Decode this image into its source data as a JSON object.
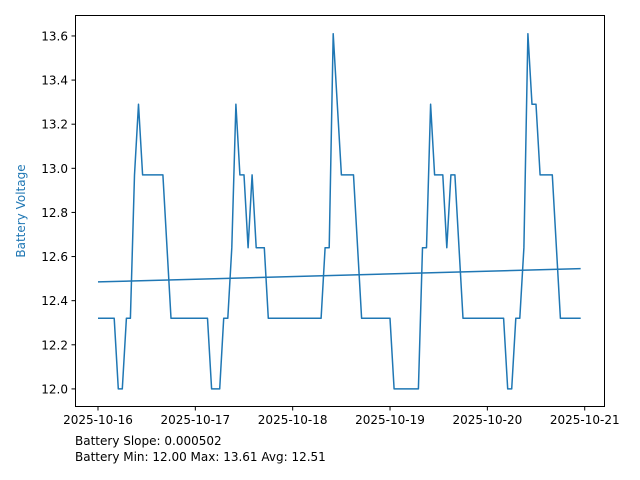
{
  "chart_data": {
    "type": "line",
    "title": "",
    "xlabel": "",
    "ylabel": "Battery Voltage",
    "ylabel_color": "#1f77b4",
    "line_color": "#1f77b4",
    "grid": false,
    "legend": "none",
    "xlim": [
      "2025-10-15T18:20",
      "2025-10-21T05:00"
    ],
    "ylim": [
      11.918,
      13.695
    ],
    "x_ticks": [
      "2025-10-16",
      "2025-10-17",
      "2025-10-18",
      "2025-10-19",
      "2025-10-20",
      "2025-10-21"
    ],
    "y_ticks": [
      "12.0",
      "12.2",
      "12.4",
      "12.6",
      "12.8",
      "13.0",
      "13.2",
      "13.4",
      "13.6"
    ],
    "series": [
      {
        "x": [
          "2025-10-16T00:00",
          "2025-10-16T04:00",
          "2025-10-16T05:00",
          "2025-10-16T06:00",
          "2025-10-16T07:00",
          "2025-10-16T08:00",
          "2025-10-16T09:00",
          "2025-10-16T10:00",
          "2025-10-16T11:00",
          "2025-10-16T16:00",
          "2025-10-16T18:00",
          "2025-10-17T03:00",
          "2025-10-17T04:00",
          "2025-10-17T06:00",
          "2025-10-17T07:00",
          "2025-10-17T08:00",
          "2025-10-17T09:00",
          "2025-10-17T10:00",
          "2025-10-17T11:00",
          "2025-10-17T12:00",
          "2025-10-17T13:00",
          "2025-10-17T14:00",
          "2025-10-17T15:00",
          "2025-10-17T17:00",
          "2025-10-17T18:00",
          "2025-10-18T07:00",
          "2025-10-18T08:00",
          "2025-10-18T09:00",
          "2025-10-18T10:00",
          "2025-10-18T12:00",
          "2025-10-18T15:00",
          "2025-10-18T17:00",
          "2025-10-19T00:00",
          "2025-10-19T01:00",
          "2025-10-19T07:00",
          "2025-10-19T08:00",
          "2025-10-19T09:00",
          "2025-10-19T10:00",
          "2025-10-19T11:00",
          "2025-10-19T13:00",
          "2025-10-19T14:00",
          "2025-10-19T15:00",
          "2025-10-19T16:00",
          "2025-10-19T18:00",
          "2025-10-20T04:00",
          "2025-10-20T05:00",
          "2025-10-20T06:00",
          "2025-10-20T07:00",
          "2025-10-20T08:00",
          "2025-10-20T09:00",
          "2025-10-20T10:00",
          "2025-10-20T11:00",
          "2025-10-20T12:00",
          "2025-10-20T13:00",
          "2025-10-20T16:00",
          "2025-10-20T18:00",
          "2025-10-20T23:00"
        ],
        "y": [
          12.32,
          12.32,
          12.0,
          12.0,
          12.32,
          12.32,
          12.97,
          13.29,
          12.97,
          12.97,
          12.32,
          12.32,
          12.0,
          12.0,
          12.32,
          12.32,
          12.64,
          13.29,
          12.97,
          12.97,
          12.64,
          12.97,
          12.64,
          12.64,
          12.32,
          12.32,
          12.64,
          12.64,
          13.61,
          12.97,
          12.97,
          12.32,
          12.32,
          12.0,
          12.0,
          12.64,
          12.64,
          13.29,
          12.97,
          12.97,
          12.64,
          12.97,
          12.97,
          12.32,
          12.32,
          12.0,
          12.0,
          12.32,
          12.32,
          12.64,
          13.61,
          13.29,
          13.29,
          12.97,
          12.97,
          12.32,
          12.32
        ]
      }
    ],
    "trendline": {
      "x": [
        "2025-10-16T00:00",
        "2025-10-20T23:00"
      ],
      "y": [
        12.485,
        12.545
      ]
    }
  },
  "annotations": {
    "slope": "Battery Slope: 0.000502",
    "stats": "Battery Min: 12.00 Max: 13.61 Avg: 12.51"
  }
}
